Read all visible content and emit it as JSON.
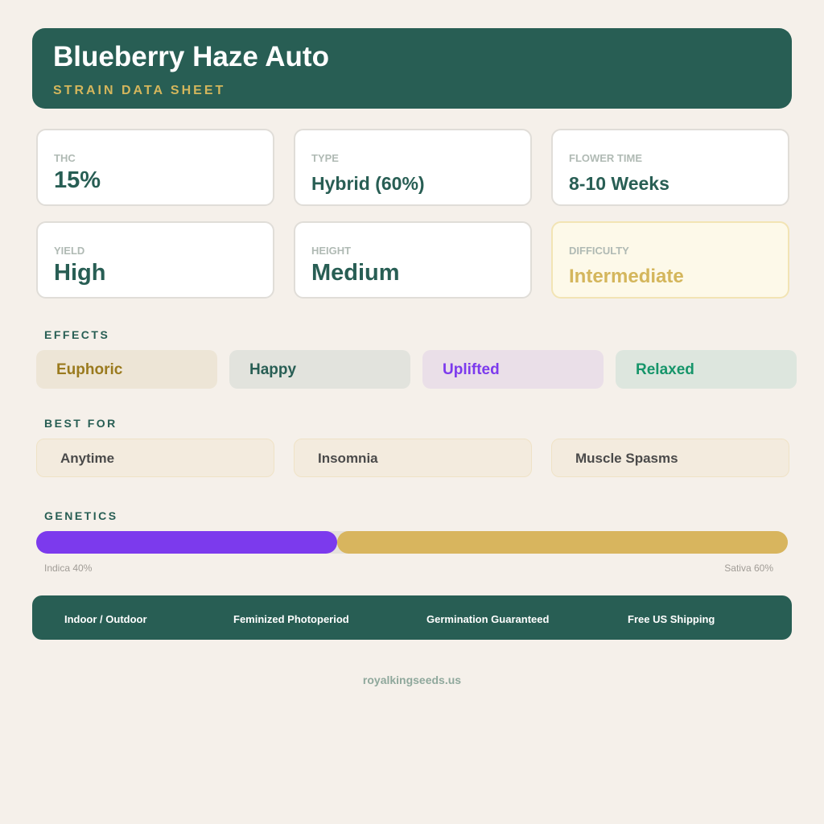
{
  "header": {
    "title": "Blueberry Haze Auto",
    "subtitle": "STRAIN DATA SHEET"
  },
  "stats": [
    {
      "label": "THC",
      "value": "15%"
    },
    {
      "label": "TYPE",
      "value": "Hybrid (60%)"
    },
    {
      "label": "FLOWER TIME",
      "value": "8-10 Weeks"
    },
    {
      "label": "YIELD",
      "value": "High"
    },
    {
      "label": "HEIGHT",
      "value": "Medium"
    },
    {
      "label": "DIFFICULTY",
      "value": "Intermediate"
    }
  ],
  "effects": {
    "title": "EFFECTS",
    "items": [
      {
        "label": "Euphoric",
        "color": "#9a7a1e",
        "bg": "#ede5d6"
      },
      {
        "label": "Happy",
        "color": "#285e54",
        "bg": "#e2e3dd"
      },
      {
        "label": "Uplifted",
        "color": "#7c3aed",
        "bg": "#eadfe8"
      },
      {
        "label": "Relaxed",
        "color": "#16956a",
        "bg": "#dde6de"
      }
    ]
  },
  "best_for": {
    "title": "BEST FOR",
    "items": [
      "Anytime",
      "Insomnia",
      "Muscle Spasms"
    ]
  },
  "genetics": {
    "title": "GENETICS",
    "indica_percent": 40,
    "sativa_percent": 60,
    "indica_label": "Indica 40%",
    "sativa_label": "Sativa 60%",
    "indica_color": "#7c3aed",
    "sativa_color": "#d8b55e"
  },
  "footer": {
    "items": [
      "Indoor / Outdoor",
      "Feminized Photoperiod",
      "Germination Guaranteed",
      "Free US Shipping"
    ]
  },
  "site": "royalkingseeds.us"
}
